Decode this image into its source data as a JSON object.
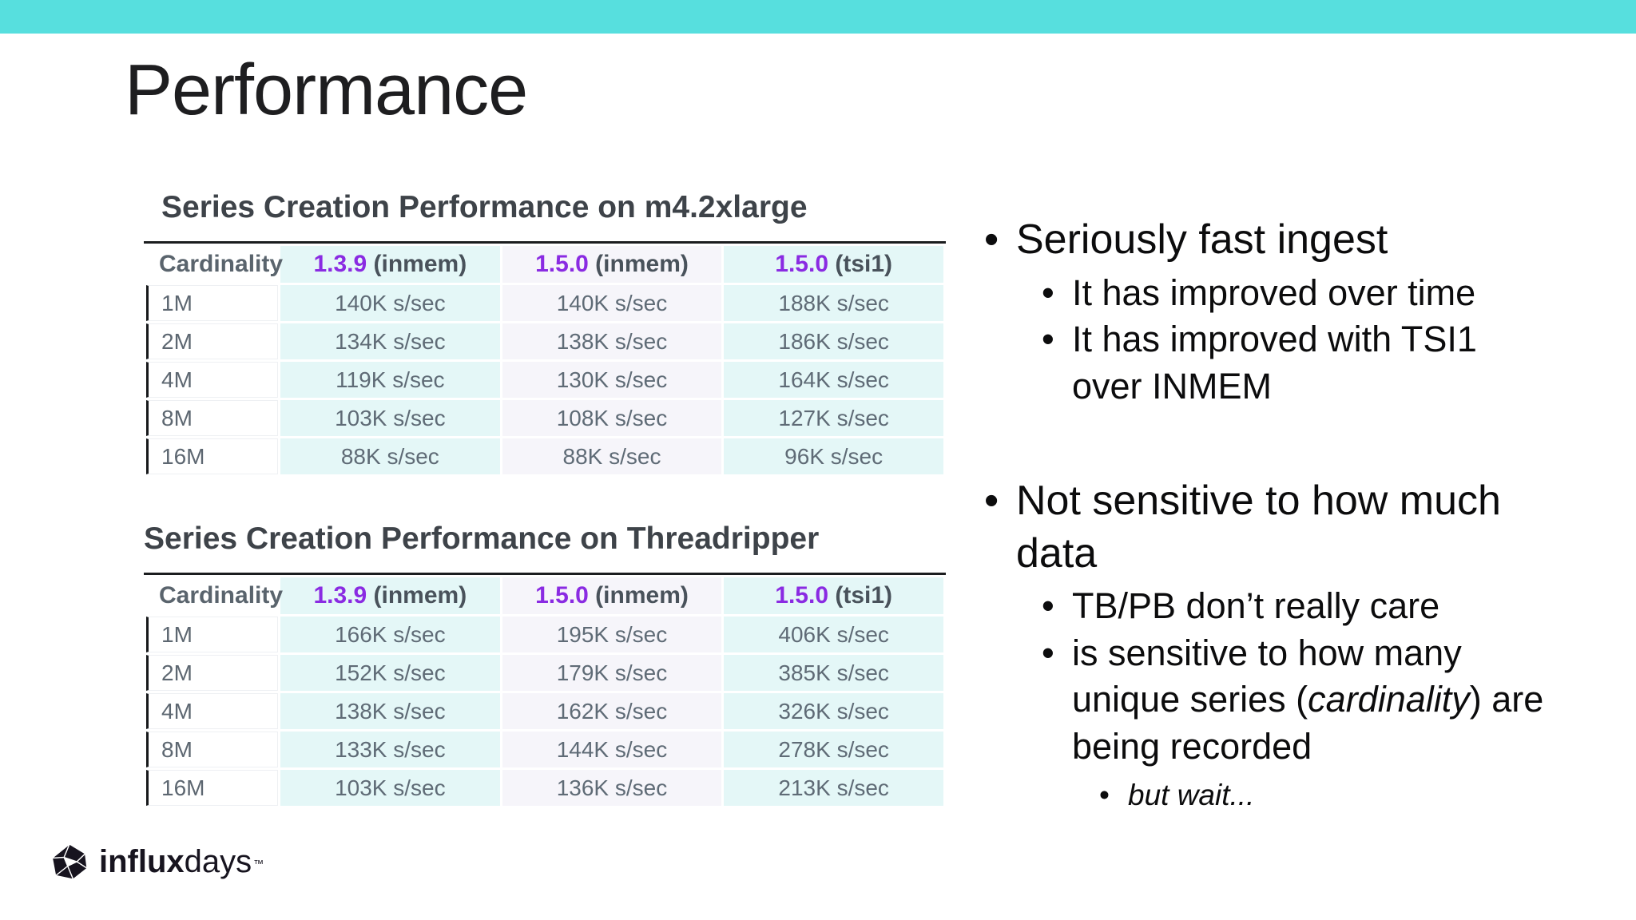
{
  "page_title": "Performance",
  "bullet_char": "•",
  "colors": {
    "accent_teal": "#57dfde",
    "version_purple": "#8a2be2",
    "col_cyan": "#e4f7f7",
    "col_lavender": "#f6f5fa"
  },
  "tables": [
    {
      "heading": "Series Creation Performance on m4.2xlarge",
      "columns": [
        {
          "label": "Cardinality"
        },
        {
          "version": "1.3.9",
          "suffix": " (inmem)",
          "bg": "cyan"
        },
        {
          "version": "1.5.0",
          "suffix": " (inmem)",
          "bg": "lav"
        },
        {
          "version": "1.5.0",
          "suffix": " (tsi1)",
          "bg": "cyan"
        }
      ],
      "rows": [
        [
          "1M",
          "140K s/sec",
          "140K s/sec",
          "188K s/sec"
        ],
        [
          "2M",
          "134K s/sec",
          "138K s/sec",
          "186K s/sec"
        ],
        [
          "4M",
          "119K s/sec",
          "130K s/sec",
          "164K s/sec"
        ],
        [
          "8M",
          "103K s/sec",
          "108K s/sec",
          "127K s/sec"
        ],
        [
          "16M",
          "88K s/sec",
          "88K s/sec",
          "96K s/sec"
        ]
      ]
    },
    {
      "heading": "Series Creation Performance on Threadripper",
      "columns": [
        {
          "label": "Cardinality"
        },
        {
          "version": "1.3.9",
          "suffix": " (inmem)",
          "bg": "cyan"
        },
        {
          "version": "1.5.0",
          "suffix": " (inmem)",
          "bg": "lav"
        },
        {
          "version": "1.5.0",
          "suffix": " (tsi1)",
          "bg": "cyan"
        }
      ],
      "rows": [
        [
          "1M",
          "166K s/sec",
          "195K s/sec",
          "406K s/sec"
        ],
        [
          "2M",
          "152K s/sec",
          "179K s/sec",
          "385K s/sec"
        ],
        [
          "4M",
          "138K s/sec",
          "162K s/sec",
          "326K s/sec"
        ],
        [
          "8M",
          "133K s/sec",
          "144K s/sec",
          "278K s/sec"
        ],
        [
          "16M",
          "103K s/sec",
          "136K s/sec",
          "213K s/sec"
        ]
      ]
    }
  ],
  "bullets": [
    {
      "lines": [
        [
          {
            "t": "Seriously fast ingest"
          }
        ]
      ],
      "children": [
        {
          "lines": [
            [
              {
                "t": "It has improved over time"
              }
            ]
          ]
        },
        {
          "lines": [
            [
              {
                "t": "It has improved with TSI1"
              }
            ],
            [
              {
                "t": "over INMEM"
              }
            ]
          ]
        }
      ]
    },
    {
      "lines": [
        [
          {
            "t": "Not sensitive to how much"
          }
        ],
        [
          {
            "t": "data"
          }
        ]
      ],
      "children": [
        {
          "lines": [
            [
              {
                "t": "TB/PB don’t really care"
              }
            ]
          ]
        },
        {
          "lines": [
            [
              {
                "t": "is sensitive to how many"
              }
            ],
            [
              {
                "t": "unique series ("
              },
              {
                "t": "cardinality",
                "italic": true
              },
              {
                "t": ") are"
              }
            ],
            [
              {
                "t": "being recorded"
              }
            ]
          ],
          "children": [
            {
              "lines": [
                [
                  {
                    "t": "but wait...",
                    "italic": true
                  }
                ]
              ]
            }
          ]
        }
      ]
    }
  ],
  "logo": {
    "bold": "influx",
    "light": "days",
    "tm": "™"
  }
}
